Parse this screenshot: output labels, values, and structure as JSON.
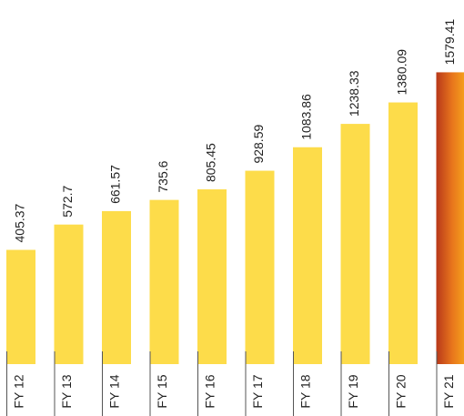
{
  "chart_data": {
    "type": "bar",
    "categories": [
      "FY 12",
      "FY 13",
      "FY 14",
      "FY 15",
      "FY 16",
      "FY 17",
      "FY 18",
      "FY 19",
      "FY 20",
      "FY 21"
    ],
    "values": [
      405.37,
      572.7,
      661.57,
      735.6,
      805.45,
      928.59,
      1083.86,
      1238.33,
      1380.09,
      1579.41
    ],
    "colors": [
      "#fddc4a",
      "#fddc4a",
      "#fddc4a",
      "#fddc4a",
      "#fddc4a",
      "#fddc4a",
      "#fddc4a",
      "#fddc4a",
      "#fddc4a",
      "#e8761c"
    ],
    "ylim": [
      -350,
      1600
    ]
  }
}
